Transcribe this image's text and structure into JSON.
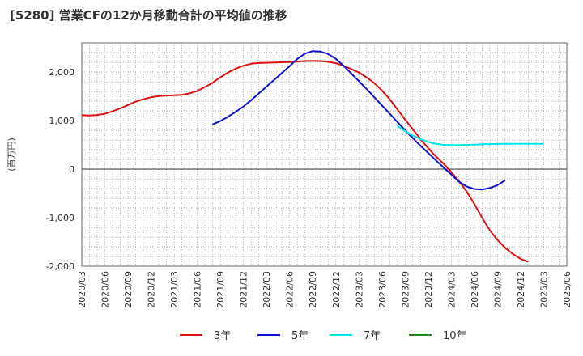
{
  "title": "[5280]  営業CFの12か月移動合計の平均値の推移",
  "chart_data": {
    "type": "line",
    "title": "[5280]  営業CFの12か月移動合計の平均値の推移",
    "ylabel": "(百万円)",
    "xlabel": "",
    "ylim": [
      -2000,
      2600
    ],
    "yticks": [
      -2000,
      -1000,
      0,
      1000,
      2000
    ],
    "ytick_labels": [
      "-2,000",
      "-1,000",
      "0",
      "1,000",
      "2,000"
    ],
    "xlim": [
      "2020-03",
      "2025-06"
    ],
    "xticks": [
      "2020/03",
      "2020/06",
      "2020/09",
      "2020/12",
      "2021/03",
      "2021/06",
      "2021/09",
      "2021/12",
      "2022/03",
      "2022/06",
      "2022/09",
      "2022/12",
      "2023/03",
      "2023/06",
      "2023/09",
      "2023/12",
      "2024/03",
      "2024/06",
      "2024/09",
      "2024/12",
      "2025/03",
      "2025/06"
    ],
    "grid": true,
    "legend_position": "bottom",
    "series": [
      {
        "name": "3年",
        "color": "#dd1111",
        "points": [
          [
            "2020-03",
            1110
          ],
          [
            "2020-04",
            1105
          ],
          [
            "2020-05",
            1115
          ],
          [
            "2020-06",
            1140
          ],
          [
            "2020-07",
            1190
          ],
          [
            "2020-08",
            1250
          ],
          [
            "2020-09",
            1320
          ],
          [
            "2020-10",
            1390
          ],
          [
            "2020-11",
            1440
          ],
          [
            "2020-12",
            1480
          ],
          [
            "2021-01",
            1505
          ],
          [
            "2021-02",
            1515
          ],
          [
            "2021-03",
            1520
          ],
          [
            "2021-04",
            1530
          ],
          [
            "2021-05",
            1560
          ],
          [
            "2021-06",
            1610
          ],
          [
            "2021-07",
            1690
          ],
          [
            "2021-08",
            1780
          ],
          [
            "2021-09",
            1890
          ],
          [
            "2021-10",
            1990
          ],
          [
            "2021-11",
            2070
          ],
          [
            "2021-12",
            2130
          ],
          [
            "2022-01",
            2170
          ],
          [
            "2022-02",
            2185
          ],
          [
            "2022-03",
            2190
          ],
          [
            "2022-04",
            2195
          ],
          [
            "2022-05",
            2200
          ],
          [
            "2022-06",
            2205
          ],
          [
            "2022-07",
            2215
          ],
          [
            "2022-08",
            2225
          ],
          [
            "2022-09",
            2230
          ],
          [
            "2022-10",
            2225
          ],
          [
            "2022-11",
            2210
          ],
          [
            "2022-12",
            2180
          ],
          [
            "2022-13",
            2130
          ],
          [
            "2023-02",
            2060
          ],
          [
            "2023-03",
            1990
          ],
          [
            "2023-04",
            1890
          ],
          [
            "2023-05",
            1770
          ],
          [
            "2023-06",
            1620
          ],
          [
            "2023-07",
            1440
          ],
          [
            "2023-08",
            1230
          ],
          [
            "2023-09",
            1020
          ],
          [
            "2023-10",
            820
          ],
          [
            "2023-11",
            620
          ],
          [
            "2023-12",
            430
          ],
          [
            "2024-01",
            260
          ],
          [
            "2024-02",
            110
          ],
          [
            "2024-03",
            -60
          ],
          [
            "2024-04",
            -250
          ],
          [
            "2024-05",
            -460
          ],
          [
            "2024-06",
            -720
          ],
          [
            "2024-07",
            -1000
          ],
          [
            "2024-08",
            -1260
          ],
          [
            "2024-09",
            -1460
          ],
          [
            "2024-10",
            -1620
          ],
          [
            "2024-11",
            -1750
          ],
          [
            "2024-12",
            -1850
          ],
          [
            "2025-01",
            -1910
          ]
        ]
      },
      {
        "name": "5年",
        "color": "#1111cc",
        "points": [
          [
            "2021-08",
            920
          ],
          [
            "2021-09",
            990
          ],
          [
            "2021-10",
            1080
          ],
          [
            "2021-11",
            1180
          ],
          [
            "2021-12",
            1290
          ],
          [
            "2022-01",
            1420
          ],
          [
            "2022-02",
            1560
          ],
          [
            "2022-03",
            1700
          ],
          [
            "2022-04",
            1840
          ],
          [
            "2022-05",
            1980
          ],
          [
            "2022-06",
            2120
          ],
          [
            "2022-07",
            2270
          ],
          [
            "2022-08",
            2380
          ],
          [
            "2022-09",
            2430
          ],
          [
            "2022-10",
            2420
          ],
          [
            "2022-11",
            2370
          ],
          [
            "2022-12",
            2270
          ],
          [
            "2023-01",
            2130
          ],
          [
            "2023-02",
            1970
          ],
          [
            "2023-03",
            1810
          ],
          [
            "2023-04",
            1650
          ],
          [
            "2023-05",
            1480
          ],
          [
            "2023-06",
            1310
          ],
          [
            "2023-07",
            1140
          ],
          [
            "2023-08",
            970
          ],
          [
            "2023-09",
            800
          ],
          [
            "2023-10",
            640
          ],
          [
            "2023-11",
            480
          ],
          [
            "2023-12",
            330
          ],
          [
            "2024-01",
            180
          ],
          [
            "2024-02",
            30
          ],
          [
            "2024-03",
            -110
          ],
          [
            "2024-04",
            -260
          ],
          [
            "2024-05",
            -360
          ],
          [
            "2024-06",
            -410
          ],
          [
            "2024-07",
            -420
          ],
          [
            "2024-08",
            -390
          ],
          [
            "2024-09",
            -330
          ],
          [
            "2024-10",
            -230
          ]
        ]
      },
      {
        "name": "7年",
        "color": "#00e5e5",
        "points": [
          [
            "2023-08",
            890
          ],
          [
            "2023-09",
            780
          ],
          [
            "2023-10",
            690
          ],
          [
            "2023-11",
            620
          ],
          [
            "2023-12",
            560
          ],
          [
            "2024-01",
            520
          ],
          [
            "2024-02",
            500
          ],
          [
            "2024-03",
            495
          ],
          [
            "2024-04",
            495
          ],
          [
            "2024-05",
            500
          ],
          [
            "2024-06",
            505
          ],
          [
            "2024-07",
            510
          ],
          [
            "2024-08",
            515
          ],
          [
            "2024-09",
            518
          ],
          [
            "2024-10",
            520
          ],
          [
            "2024-11",
            520
          ],
          [
            "2024-12",
            520
          ],
          [
            "2025-01",
            520
          ],
          [
            "2025-02",
            520
          ],
          [
            "2025-03",
            520
          ]
        ]
      },
      {
        "name": "10年",
        "color": "#228822",
        "points": []
      }
    ]
  }
}
